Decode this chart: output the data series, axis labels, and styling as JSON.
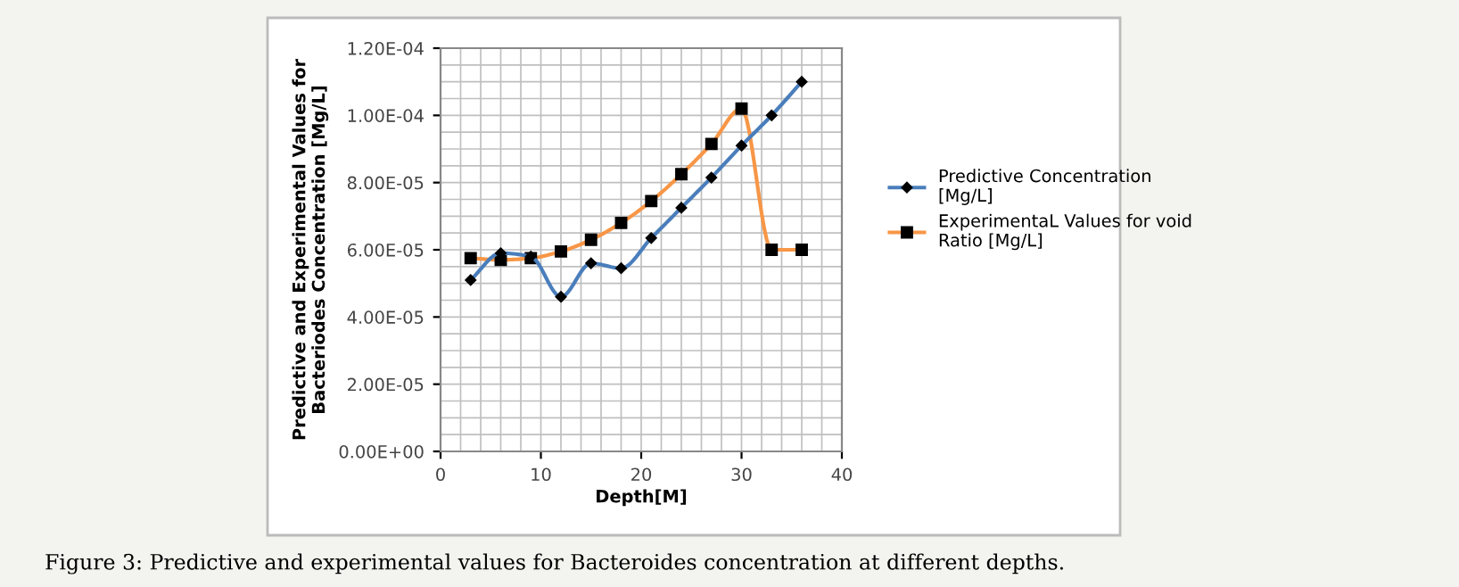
{
  "chart_data": {
    "type": "line",
    "xlabel": "Depth[M]",
    "ylabel": "Predictive and Experimental Values for\nBacteriodes Concentration [Mg/L]",
    "x": [
      3,
      6,
      9,
      12,
      15,
      18,
      21,
      24,
      27,
      30,
      33,
      36
    ],
    "series": [
      {
        "name": "Predictive Concentration\n[Mg/L]",
        "color": "#4a7ebb",
        "marker": "diamond",
        "values": [
          5.1e-05,
          5.9e-05,
          5.8e-05,
          4.6e-05,
          5.6e-05,
          5.45e-05,
          6.35e-05,
          7.25e-05,
          8.15e-05,
          9.1e-05,
          0.0001,
          0.00011
        ]
      },
      {
        "name": "ExperimentaL Values for void\nRatio [Mg/L]",
        "color": "#f79646",
        "marker": "square",
        "values": [
          5.75e-05,
          5.7e-05,
          5.75e-05,
          5.95e-05,
          6.3e-05,
          6.8e-05,
          7.45e-05,
          8.25e-05,
          9.15e-05,
          0.000102,
          6e-05,
          6e-05
        ]
      }
    ],
    "xlim": [
      0,
      40
    ],
    "xticks": [
      0,
      10,
      20,
      30,
      40
    ],
    "ylim": [
      0,
      0.00012
    ],
    "yticks": [
      {
        "value": 0,
        "label": "0.00E+00"
      },
      {
        "value": 2e-05,
        "label": "2.00E-05"
      },
      {
        "value": 4e-05,
        "label": "4.00E-05"
      },
      {
        "value": 6e-05,
        "label": "6.00E-05"
      },
      {
        "value": 8e-05,
        "label": "8.00E-05"
      },
      {
        "value": 0.0001,
        "label": "1.00E-04"
      },
      {
        "value": 0.00012,
        "label": "1.20E-04"
      }
    ],
    "grid": true,
    "legend": "right",
    "line_style": "solid",
    "annotations": [
      "Figure 3: Predictive and experimental values for Bacteroides concentration at different depths."
    ]
  }
}
